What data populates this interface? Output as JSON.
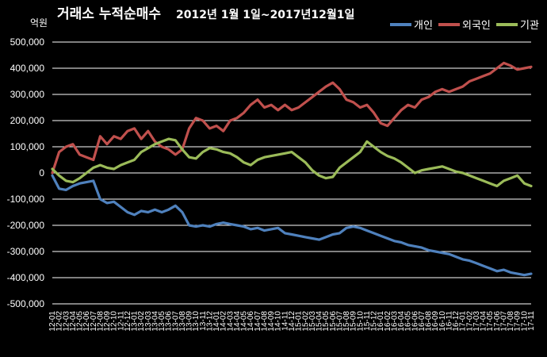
{
  "chart_data": {
    "type": "line",
    "title": "거래소  누적순매수 2012년 1월 1일~2017년12월1일",
    "title_main": "거래소  누적순매수",
    "title_period": "2012년 1월 1일~2017년12월1일",
    "ylabel": "억원",
    "xlabel": "",
    "ylim": [
      -500000,
      500000
    ],
    "yticks": [
      500000,
      400000,
      300000,
      200000,
      100000,
      0,
      -100000,
      -200000,
      -300000,
      -400000,
      -500000
    ],
    "ytick_labels": [
      "500,000",
      "400,000",
      "300,000",
      "200,000",
      "100,000",
      "0",
      "-100,000",
      "-200,000",
      "-300,000",
      "-400,000",
      "-500,000"
    ],
    "grid": true,
    "legend_position": "top-right",
    "categories": [
      "12-01",
      "12-02",
      "12-03",
      "12-04",
      "12-05",
      "12-06",
      "12-07",
      "12-08",
      "12-09",
      "12-10",
      "12-11",
      "12-12",
      "13-01",
      "13-02",
      "13-03",
      "13-04",
      "13-05",
      "13-06",
      "13-07",
      "13-08",
      "13-09",
      "13-10",
      "13-11",
      "13-12",
      "14-01",
      "14-02",
      "14-03",
      "14-04",
      "14-05",
      "14-06",
      "14-07",
      "14-08",
      "14-09",
      "14-10",
      "14-11",
      "14-12",
      "15-01",
      "15-02",
      "15-03",
      "15-04",
      "15-05",
      "15-06",
      "15-07",
      "15-08",
      "15-09",
      "15-10",
      "15-11",
      "15-12",
      "16-01",
      "16-02",
      "16-03",
      "16-04",
      "16-05",
      "16-06",
      "16-07",
      "16-08",
      "16-09",
      "16-10",
      "16-11",
      "16-12",
      "17-01",
      "17-02",
      "17-03",
      "17-04",
      "17-05",
      "17-06",
      "17-07",
      "17-08",
      "17-09",
      "17-10",
      "17-11"
    ],
    "series": [
      {
        "name": "개인",
        "color": "#4F81BD",
        "values": [
          -10000,
          -60000,
          -65000,
          -50000,
          -40000,
          -35000,
          -30000,
          -100000,
          -115000,
          -110000,
          -130000,
          -150000,
          -160000,
          -145000,
          -150000,
          -140000,
          -150000,
          -140000,
          -125000,
          -150000,
          -200000,
          -205000,
          -200000,
          -205000,
          -195000,
          -190000,
          -195000,
          -200000,
          -205000,
          -215000,
          -210000,
          -220000,
          -215000,
          -210000,
          -230000,
          -235000,
          -240000,
          -245000,
          -250000,
          -255000,
          -245000,
          -235000,
          -230000,
          -210000,
          -205000,
          -210000,
          -220000,
          -230000,
          -240000,
          -250000,
          -260000,
          -265000,
          -275000,
          -280000,
          -285000,
          -295000,
          -300000,
          -305000,
          -310000,
          -320000,
          -330000,
          -335000,
          -345000,
          -355000,
          -365000,
          -375000,
          -370000,
          -380000,
          -385000,
          -390000,
          -385000
        ]
      },
      {
        "name": "외국인",
        "color": "#C0504D",
        "values": [
          0,
          80000,
          100000,
          110000,
          70000,
          60000,
          50000,
          140000,
          110000,
          140000,
          130000,
          160000,
          170000,
          130000,
          160000,
          120000,
          100000,
          90000,
          70000,
          90000,
          170000,
          210000,
          200000,
          170000,
          180000,
          160000,
          200000,
          210000,
          230000,
          260000,
          280000,
          250000,
          260000,
          240000,
          260000,
          240000,
          250000,
          270000,
          290000,
          310000,
          330000,
          345000,
          320000,
          280000,
          270000,
          250000,
          260000,
          230000,
          190000,
          180000,
          210000,
          240000,
          260000,
          250000,
          280000,
          290000,
          310000,
          320000,
          310000,
          320000,
          330000,
          350000,
          360000,
          370000,
          380000,
          400000,
          420000,
          410000,
          395000,
          400000,
          405000
        ]
      },
      {
        "name": "기관",
        "color": "#9BBB59",
        "values": [
          15000,
          -10000,
          -30000,
          -35000,
          -20000,
          0,
          20000,
          30000,
          20000,
          15000,
          30000,
          40000,
          50000,
          80000,
          95000,
          110000,
          120000,
          130000,
          125000,
          90000,
          60000,
          55000,
          80000,
          95000,
          90000,
          80000,
          75000,
          60000,
          40000,
          30000,
          50000,
          60000,
          65000,
          70000,
          75000,
          80000,
          60000,
          40000,
          10000,
          -10000,
          -20000,
          -15000,
          20000,
          40000,
          60000,
          80000,
          120000,
          100000,
          80000,
          65000,
          55000,
          40000,
          20000,
          0,
          10000,
          15000,
          20000,
          25000,
          15000,
          5000,
          0,
          -10000,
          -20000,
          -30000,
          -40000,
          -50000,
          -30000,
          -20000,
          -10000,
          -40000,
          -50000
        ]
      }
    ]
  }
}
